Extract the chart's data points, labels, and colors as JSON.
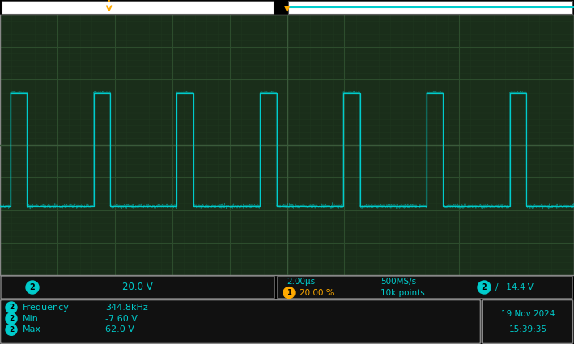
{
  "bg_color": "#000000",
  "screen_bg": "#1a2e1a",
  "grid_major_color": "#2d4d2d",
  "grid_minor_color": "#1e361e",
  "center_line_color": "#3a5a3a",
  "waveform_color": "#00cccc",
  "num_hdiv": 10,
  "num_vdiv": 8,
  "time_per_div_us": 2.0,
  "volts_per_div": 20.0,
  "v_high": 62.0,
  "v_low": -7.6,
  "frequency_khz": 344.8,
  "sample_rate": "500MS/s",
  "points": "10k points",
  "trigger_level_v": 14.4,
  "trigger_level_str": "14.4 V",
  "time_label": "2.00μs",
  "ch2_scale": "20.0 V",
  "trigger_pct": "20.00 %",
  "date_str": "19 Nov 2024",
  "time_str": "15:39:35",
  "ground_ref_div": 2.5,
  "ch2_color": "#00cccc",
  "trigger_color": "#ffaa00",
  "marker_color": "#ffaa00",
  "top_bar_bg": "#c8c8c8",
  "top_bar_box_bg": "#ffffff",
  "top_bar_line_color": "#00cccc",
  "status_bg": "#1a1a1a",
  "info_bg": "#1a1a1a",
  "box_edge_color": "#888888",
  "screen_border_color": "#888888"
}
